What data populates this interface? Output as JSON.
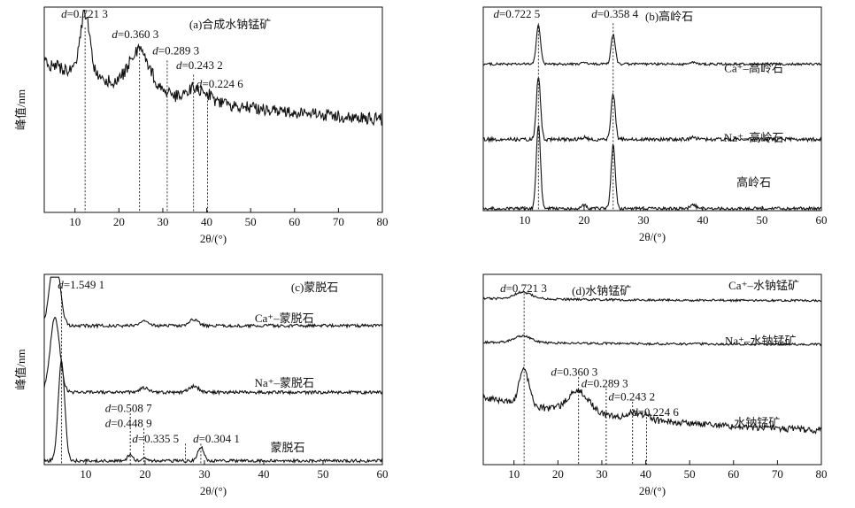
{
  "chart_data": [
    {
      "type": "line",
      "panel_title": "(a)合成水钠锰矿",
      "xlabel": "2θ/(°)",
      "ylabel": "峰值/nm",
      "xlim": [
        3,
        80
      ],
      "xticks": [
        10,
        20,
        30,
        40,
        50,
        60,
        70,
        80
      ],
      "grid": false,
      "series": [
        {
          "name": "",
          "shape": "birnessite",
          "offset": 0,
          "scale": 1.0,
          "noise": 0.055
        }
      ],
      "peaks": [
        {
          "label": "d=0.721 3",
          "x": 12.3
        },
        {
          "label": "d=0.360 3",
          "x": 24.7
        },
        {
          "label": "d=0.289 3",
          "x": 31.0
        },
        {
          "label": "d=0.243 2",
          "x": 37.0
        },
        {
          "label": "d=0.224 6",
          "x": 40.2
        }
      ]
    },
    {
      "type": "line",
      "panel_title": "(b)高岭石",
      "xlabel": "2θ/(°)",
      "ylabel": "",
      "xlim": [
        3,
        60
      ],
      "xticks": [
        10,
        20,
        30,
        40,
        50,
        60
      ],
      "grid": false,
      "series": [
        {
          "name": "Ca⁺–高岭石",
          "shape": "kaolinite",
          "offset": 2.0,
          "scale": 0.35,
          "noise": 0.03
        },
        {
          "name": "Na⁺–高岭石",
          "shape": "kaolinite",
          "offset": 1.0,
          "scale": 0.55,
          "noise": 0.03
        },
        {
          "name": "高岭石",
          "shape": "kaolinite",
          "offset": 0.0,
          "scale": 0.75,
          "noise": 0.02
        }
      ],
      "peaks": [
        {
          "label": "d=0.722 5",
          "x": 12.3
        },
        {
          "label": "d=0.358 4",
          "x": 24.9
        }
      ]
    },
    {
      "type": "line",
      "panel_title": "(c)蒙脱石",
      "xlabel": "2θ/(°)",
      "ylabel": "峰值/nm",
      "xlim": [
        3,
        60
      ],
      "xticks": [
        10,
        20,
        30,
        40,
        50,
        60
      ],
      "grid": false,
      "series": [
        {
          "name": "Ca⁺–蒙脱石",
          "shape": "montmorillonite_exchanged",
          "offset": 2.0,
          "scale": 0.75,
          "noise": 0.02
        },
        {
          "name": "Na⁺–蒙脱石",
          "shape": "montmorillonite_exchanged",
          "offset": 1.0,
          "scale": 0.75,
          "noise": 0.02
        },
        {
          "name": "蒙脱石",
          "shape": "montmorillonite",
          "offset": 0.0,
          "scale": 0.95,
          "noise": 0.015
        }
      ],
      "peaks": [
        {
          "label": "d=1.549 1",
          "x": 5.9
        },
        {
          "label": "d=0.508 7",
          "x": 17.5
        },
        {
          "label": "d=0.448 9",
          "x": 19.8
        },
        {
          "label": "d=0.335 5",
          "x": 26.8
        },
        {
          "label": "d=0.304 1",
          "x": 29.4
        }
      ]
    },
    {
      "type": "line",
      "panel_title": "(d)水钠锰矿",
      "xlabel": "2θ/(°)",
      "ylabel": "",
      "xlim": [
        3,
        80
      ],
      "xticks": [
        10,
        20,
        30,
        40,
        50,
        60,
        70,
        80
      ],
      "grid": false,
      "series": [
        {
          "name": "Ca⁺–水钠锰矿",
          "shape": "birnessite_exchanged",
          "offset": 2.0,
          "scale": 0.35,
          "noise": 0.03
        },
        {
          "name": "Na⁺–水钠锰矿",
          "shape": "birnessite_exchanged",
          "offset": 1.0,
          "scale": 0.35,
          "noise": 0.03
        },
        {
          "name": "水钠锰矿",
          "shape": "birnessite",
          "offset": 0.0,
          "scale": 0.62,
          "noise": 0.05
        }
      ],
      "peaks": [
        {
          "label": "d=0.721 3",
          "x": 12.3
        },
        {
          "label": "d=0.360 3",
          "x": 24.7
        },
        {
          "label": "d=0.289 3",
          "x": 31.0
        },
        {
          "label": "d=0.243 2",
          "x": 37.0
        },
        {
          "label": "d=0.224 6",
          "x": 40.2
        }
      ]
    }
  ]
}
